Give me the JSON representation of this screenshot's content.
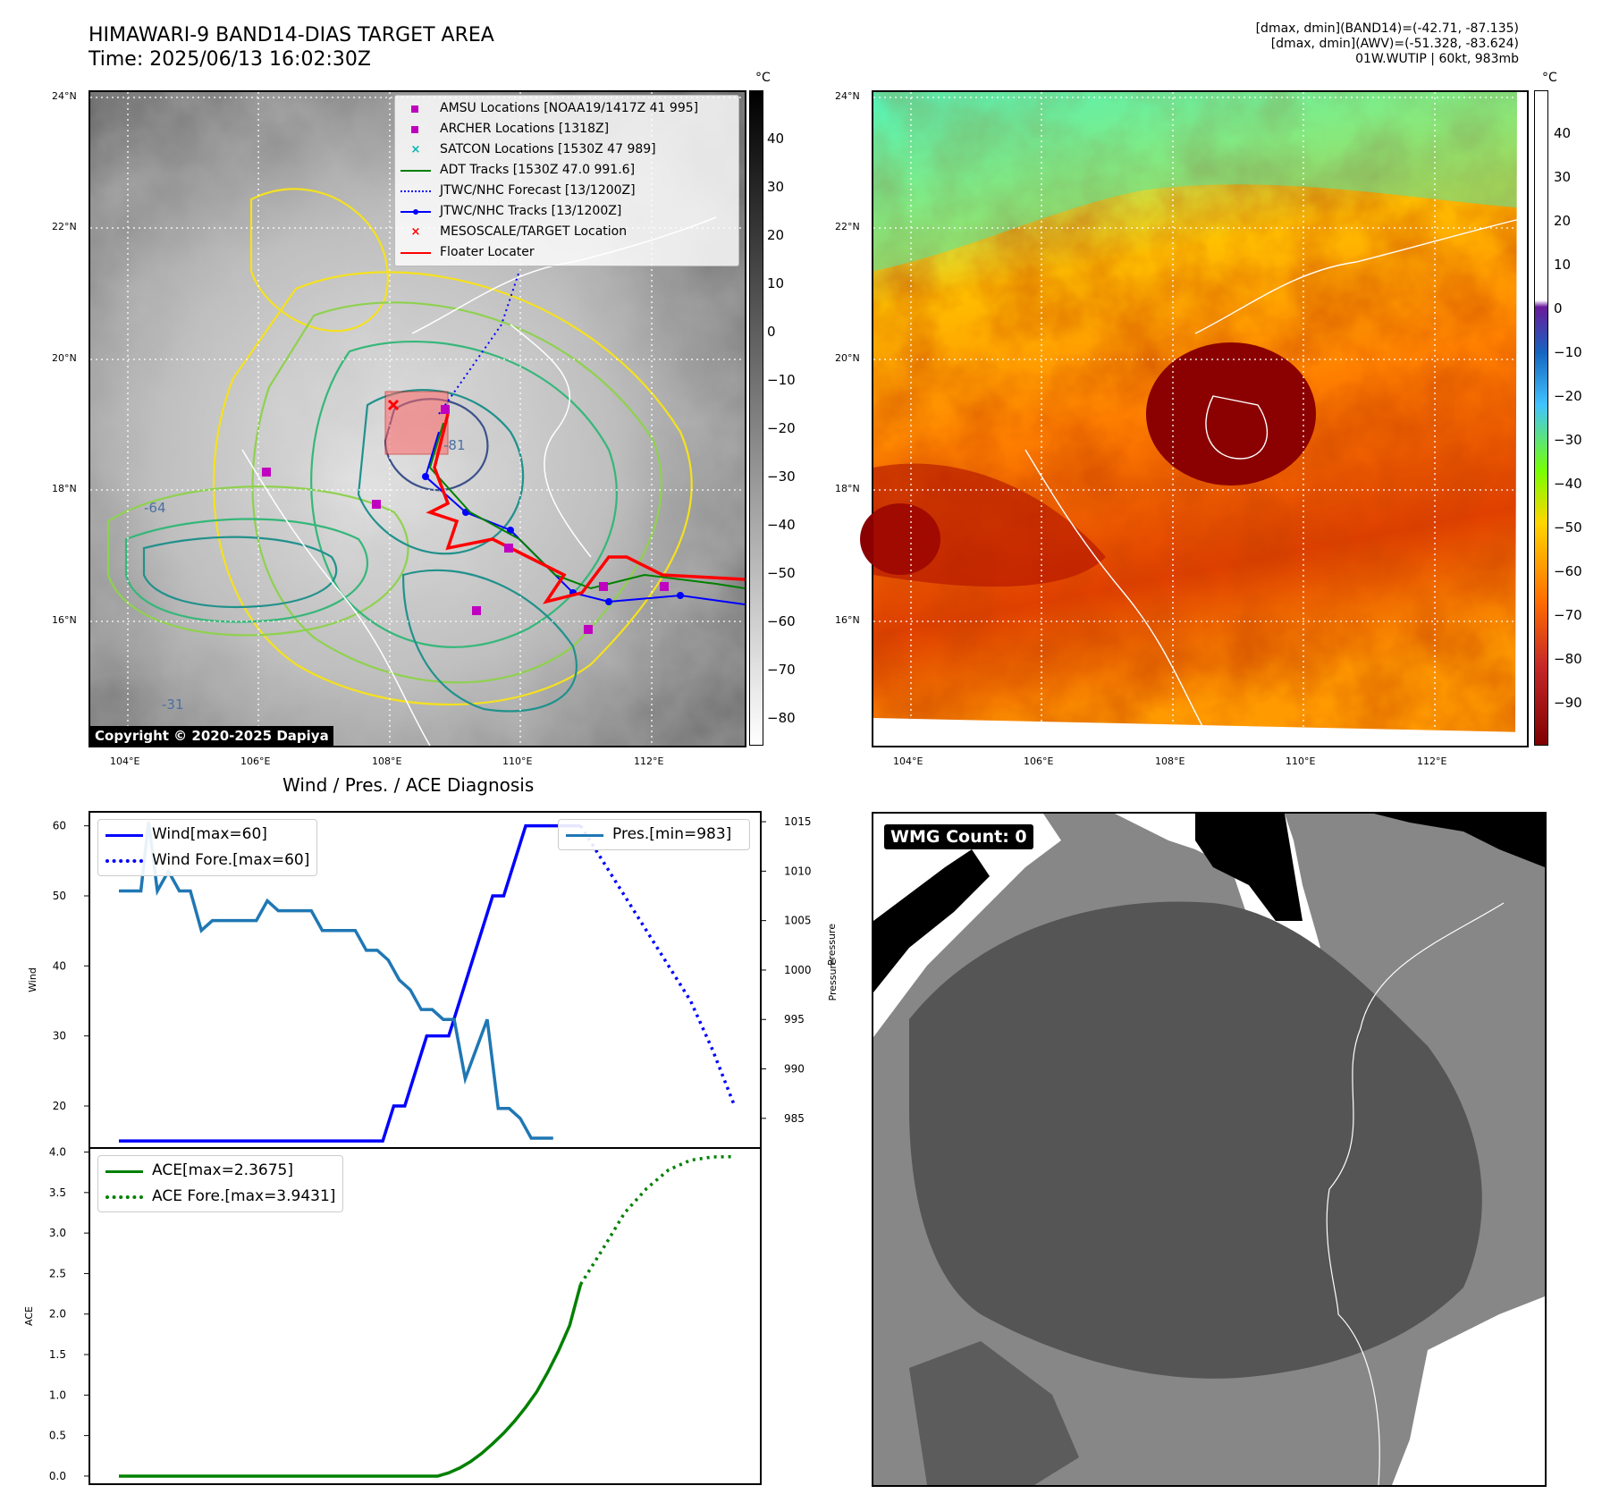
{
  "header": {
    "title_line1": "HIMAWARI-9 BAND14-DIAS TARGET AREA",
    "title_line2": "Time: 2025/06/13 16:02:30Z",
    "info_line1": "[dmax, dmin](BAND14)=(-42.71, -87.135)",
    "info_line2": "[dmax, dmin](AWV)=(-51.328, -83.624)",
    "info_line3": "01W.WUTIP | 60kt, 983mb"
  },
  "map_axes": {
    "lat_labels": [
      "24°N",
      "22°N",
      "20°N",
      "18°N",
      "16°N"
    ],
    "lon_labels": [
      "104°E",
      "106°E",
      "108°E",
      "110°E",
      "112°E"
    ]
  },
  "colorbar_left": {
    "unit": "°C",
    "ticks": [
      "40",
      "30",
      "20",
      "10",
      "0",
      "−10",
      "−20",
      "−30",
      "−40",
      "−50",
      "−60",
      "−70",
      "−80"
    ]
  },
  "colorbar_right": {
    "unit": "°C",
    "ticks": [
      "40",
      "30",
      "20",
      "10",
      "0",
      "−10",
      "−20",
      "−30",
      "−40",
      "−50",
      "−60",
      "−70",
      "−80",
      "−90"
    ]
  },
  "map_legend": [
    {
      "label": "AMSU Locations [NOAA19/1417Z 41 995]",
      "color": "#c000c0",
      "kind": "square"
    },
    {
      "label": "ARCHER Locations [1318Z]",
      "color": "#c000c0",
      "kind": "square"
    },
    {
      "label": "SATCON Locations [1530Z 47 989]",
      "color": "#00b5b5",
      "kind": "x"
    },
    {
      "label": "ADT Tracks [1530Z 47.0 991.6]",
      "color": "#008000",
      "kind": "line"
    },
    {
      "label": "JTWC/NHC Forecast [13/1200Z]",
      "color": "#0000ff",
      "kind": "dotted"
    },
    {
      "label": "JTWC/NHC Tracks [13/1200Z]",
      "color": "#0000ff",
      "kind": "linedot"
    },
    {
      "label": "MESOSCALE/TARGET Location",
      "color": "#ff0000",
      "kind": "x"
    },
    {
      "label": "Floater Locater",
      "color": "#ff0000",
      "kind": "line"
    }
  ],
  "copyright": "Copyright © 2020-2025 Dapiya",
  "wmg_count": "WMG Count: 0",
  "contour_labels": [
    "-31",
    "-64",
    "-81"
  ],
  "chart_data": [
    {
      "type": "line",
      "title": "Wind / Pres. / ACE Diagnosis",
      "ylabel": "Wind",
      "ylabel_right": "Pressure",
      "ylim": [
        14,
        62
      ],
      "ylim_right": [
        982,
        1016
      ],
      "yticks": [
        20,
        30,
        40,
        50,
        60
      ],
      "yticks_right": [
        985,
        990,
        995,
        1000,
        1005,
        1010,
        1015
      ],
      "legend_left": [
        {
          "label": "Wind[max=60]",
          "color": "#0000ff",
          "style": "solid"
        },
        {
          "label": "Wind Fore.[max=60]",
          "color": "#0000ff",
          "style": "dotted"
        }
      ],
      "legend_right": [
        {
          "label": "Pres.[min=983]",
          "color": "#1f77b4",
          "style": "solid"
        }
      ],
      "series": [
        {
          "name": "Wind[max=60]",
          "axis": "left",
          "x": [
            0,
            1,
            2,
            3,
            4,
            5,
            6,
            7,
            8,
            9,
            10,
            11,
            12,
            13,
            14,
            15,
            16,
            17,
            18,
            19,
            20,
            21,
            22,
            23,
            24,
            25,
            26,
            27,
            28,
            29,
            30,
            31,
            32,
            33,
            34,
            35,
            36,
            37,
            38,
            39,
            40,
            41,
            42
          ],
          "values": [
            15,
            15,
            15,
            15,
            15,
            15,
            15,
            15,
            15,
            15,
            15,
            15,
            15,
            15,
            15,
            15,
            15,
            15,
            15,
            15,
            15,
            15,
            15,
            15,
            15,
            20,
            20,
            25,
            30,
            30,
            30,
            35,
            40,
            45,
            50,
            50,
            55,
            60,
            60,
            60,
            60,
            60,
            60
          ]
        },
        {
          "name": "Wind Fore.[max=60]",
          "axis": "left",
          "x": [
            42,
            44,
            46,
            48,
            50,
            52,
            54,
            56
          ],
          "values": [
            60,
            55,
            50,
            45,
            40,
            35,
            28,
            20
          ]
        },
        {
          "name": "Pres.[min=983]",
          "axis": "right",
          "x": [
            0,
            2,
            2.7,
            3.5,
            4.5,
            5.5,
            6.5,
            7.5,
            8.5,
            9.5,
            10.5,
            11.5,
            12.5,
            13.5,
            14.5,
            15.5,
            16.5,
            17.5,
            18.5,
            19.5,
            20.5,
            21.5,
            22.5,
            23.5,
            24.5,
            25.5,
            26.5,
            27.5,
            28.5,
            29.5,
            30.5,
            31.5,
            32.5,
            33.5,
            34.5,
            35.5,
            36.5,
            37.5,
            38.5,
            39.5
          ],
          "values": [
            1008,
            1008,
            1015,
            1008,
            1010,
            1008,
            1008,
            1004,
            1005,
            1005,
            1005,
            1005,
            1005,
            1007,
            1006,
            1006,
            1006,
            1006,
            1004,
            1004,
            1004,
            1004,
            1002,
            1002,
            1001,
            999,
            998,
            996,
            996,
            995,
            995,
            989,
            992,
            995,
            986,
            986,
            985,
            983,
            983,
            983
          ]
        }
      ]
    },
    {
      "type": "line",
      "ylabel": "ACE",
      "ylim": [
        -0.1,
        4.05
      ],
      "yticks": [
        "0.0",
        "0.5",
        "1.0",
        "1.5",
        "2.0",
        "2.5",
        "3.0",
        "3.5",
        "4.0"
      ],
      "legend": [
        {
          "label": "ACE[max=2.3675]",
          "color": "#008000",
          "style": "solid"
        },
        {
          "label": "ACE Fore.[max=3.9431]",
          "color": "#008000",
          "style": "dotted"
        }
      ],
      "series": [
        {
          "name": "ACE[max=2.3675]",
          "x": [
            0,
            5,
            10,
            15,
            20,
            25,
            29,
            30,
            31,
            32,
            33,
            34,
            35,
            36,
            37,
            38,
            39,
            40,
            41,
            42
          ],
          "values": [
            0,
            0,
            0,
            0,
            0,
            0,
            0,
            0.04,
            0.1,
            0.18,
            0.28,
            0.4,
            0.53,
            0.68,
            0.85,
            1.04,
            1.28,
            1.55,
            1.86,
            2.3675
          ]
        },
        {
          "name": "ACE Fore.[max=3.9431]",
          "x": [
            42,
            44,
            46,
            48,
            50,
            52,
            54,
            56
          ],
          "values": [
            2.3675,
            2.8,
            3.25,
            3.55,
            3.78,
            3.9,
            3.94,
            3.9431
          ]
        }
      ]
    }
  ]
}
